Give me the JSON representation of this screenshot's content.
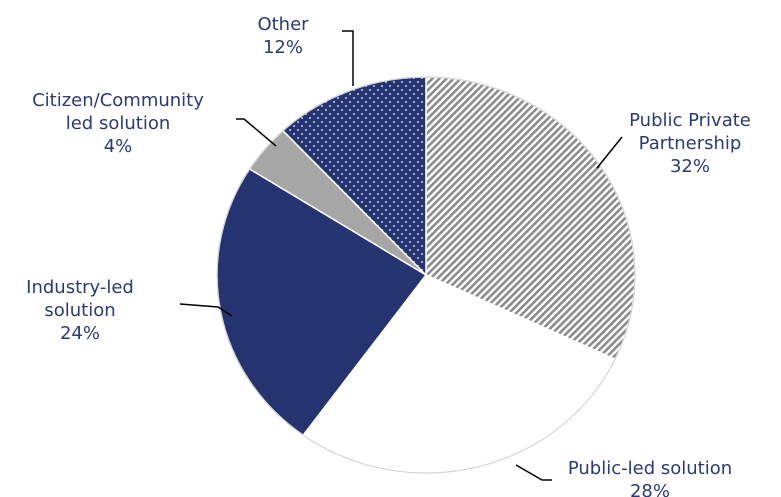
{
  "chart_data": {
    "type": "pie",
    "title": "",
    "start": "12 o'clock, clockwise",
    "slices": [
      {
        "name": "Public Private Partnership",
        "label_lines": [
          "Public Private",
          "Partnership"
        ],
        "value": 32,
        "value_label": "32%",
        "color": "#9a9a9a",
        "pattern": "diagonal-hatch"
      },
      {
        "name": "Public-led solution",
        "label_lines": [
          "Public-led solution"
        ],
        "value": 28,
        "value_label": "28%",
        "color": "#ffffff",
        "pattern": "solid"
      },
      {
        "name": "Industry-led solution",
        "label_lines": [
          "Industry-led",
          "solution"
        ],
        "value": 24,
        "value_label": "24%",
        "color": "#253470",
        "pattern": "solid"
      },
      {
        "name": "Citizen/Community led solution",
        "label_lines": [
          "Citizen/Community",
          "led solution"
        ],
        "value": 4,
        "value_label": "4%",
        "color": "#a6a6a6",
        "pattern": "solid"
      },
      {
        "name": "Other",
        "label_lines": [
          "Other"
        ],
        "value": 12,
        "value_label": "12%",
        "color": "#253470",
        "pattern": "dots"
      }
    ]
  }
}
